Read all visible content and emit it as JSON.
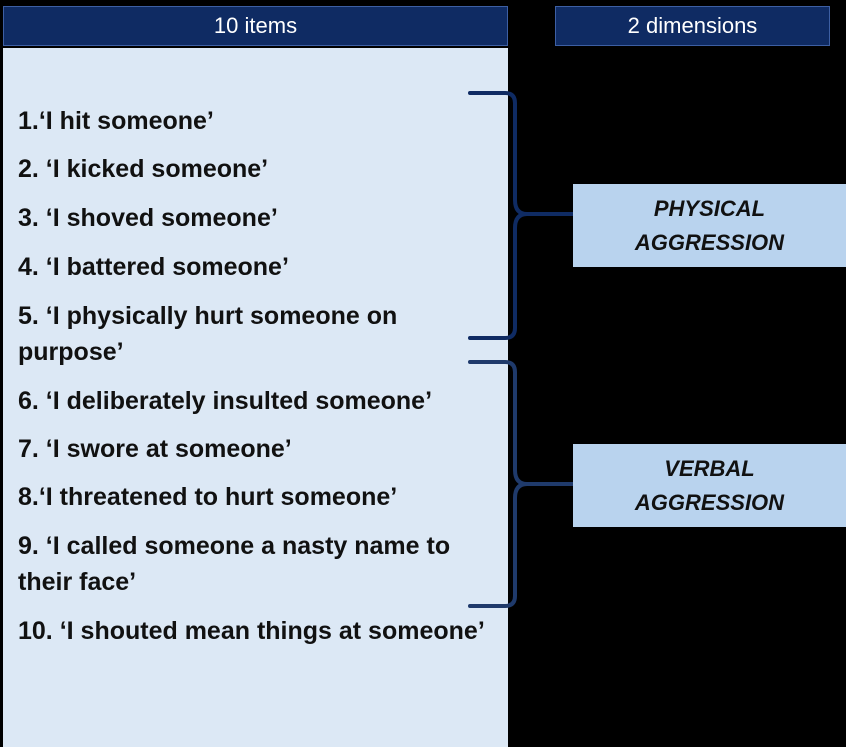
{
  "header": {
    "items_label": "10 items",
    "dimensions_label": "2 dimensions"
  },
  "items": [
    "1.‘I hit someone’",
    "2. ‘I kicked someone’",
    "3. ‘I shoved someone’",
    "4. ‘I battered someone’",
    "5. ‘I physically hurt someone on purpose’",
    "6. ‘I deliberately insulted someone’",
    "7. ‘I swore at someone’",
    "8.‘I threatened to hurt someone’",
    "9. ‘I called someone a nasty name to their face’",
    "10. ‘I shouted mean things at someone’"
  ],
  "dimensions": {
    "physical": {
      "line1": "PHYSICAL",
      "line2": "AGGRESSION"
    },
    "verbal": {
      "line1": "VERBAL",
      "line2": "AGGRESSION"
    }
  },
  "colors": {
    "header_bg": "#0f2b63",
    "panel_bg": "#dce8f5",
    "dimension_bg": "#b9d3ee",
    "brace_physical": "#0f2b63",
    "brace_verbal": "#1f3a6b"
  }
}
